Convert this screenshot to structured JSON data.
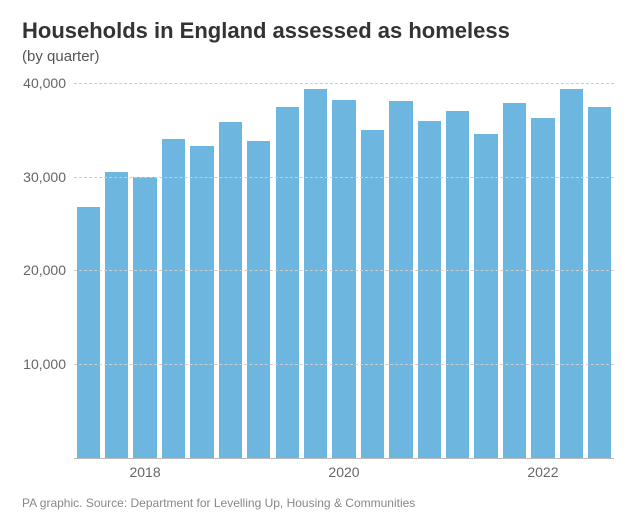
{
  "title": "Households in England assessed as homeless",
  "subtitle": "(by quarter)",
  "footer": "PA graphic. Source: Department for Levelling Up, Housing & Communities",
  "chart": {
    "type": "bar",
    "bar_color": "#6cb6e0",
    "background_color": "#ffffff",
    "grid_color": "#cccccc",
    "axis_color": "#bbbbbb",
    "text_color": "#666666",
    "title_color": "#333333",
    "title_fontsize": 22,
    "subtitle_fontsize": 15,
    "label_fontsize": 14,
    "footer_fontsize": 12,
    "bar_width_ratio": 0.82,
    "ymin": 0,
    "ymax": 40500,
    "yticks": [
      10000,
      20000,
      30000,
      40000
    ],
    "ytick_labels": [
      "10,000",
      "20,000",
      "30,000",
      "40,000"
    ],
    "values": [
      26800,
      30500,
      30000,
      34000,
      33300,
      35800,
      33800,
      37400,
      39300,
      38200,
      35000,
      38000,
      35900,
      37000,
      34500,
      37800,
      36200,
      39300,
      37400
    ],
    "x_years": [
      "2018",
      "2020",
      "2022"
    ],
    "x_year_positions": [
      2,
      9,
      16
    ],
    "n_bars": 19
  }
}
